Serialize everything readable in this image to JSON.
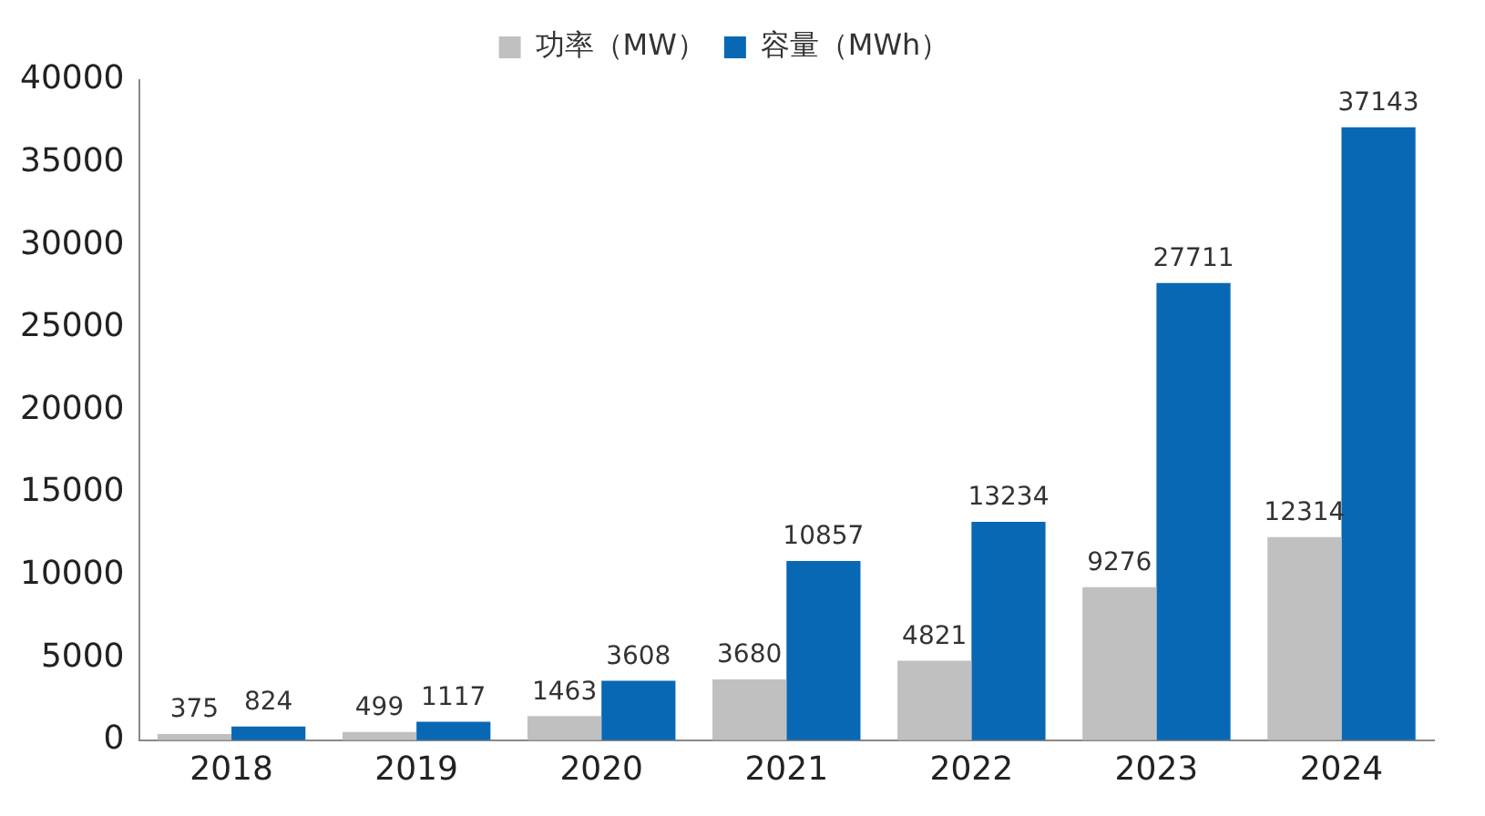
{
  "chart_data": {
    "type": "bar",
    "categories": [
      "2018",
      "2019",
      "2020",
      "2021",
      "2022",
      "2023",
      "2024"
    ],
    "series": [
      {
        "name": "功率（MW）",
        "color": "#c0c0c0",
        "values": [
          375,
          499,
          1463,
          3680,
          4821,
          9276,
          12314
        ]
      },
      {
        "name": "容量（MWh）",
        "color": "#0868b4",
        "values": [
          824,
          1117,
          3608,
          10857,
          13234,
          27711,
          37143
        ]
      }
    ],
    "ylim": [
      0,
      40000
    ],
    "yticks": [
      0,
      5000,
      10000,
      15000,
      20000,
      25000,
      30000,
      35000,
      40000
    ],
    "grid": false,
    "legend": "top",
    "data_labels": true
  }
}
